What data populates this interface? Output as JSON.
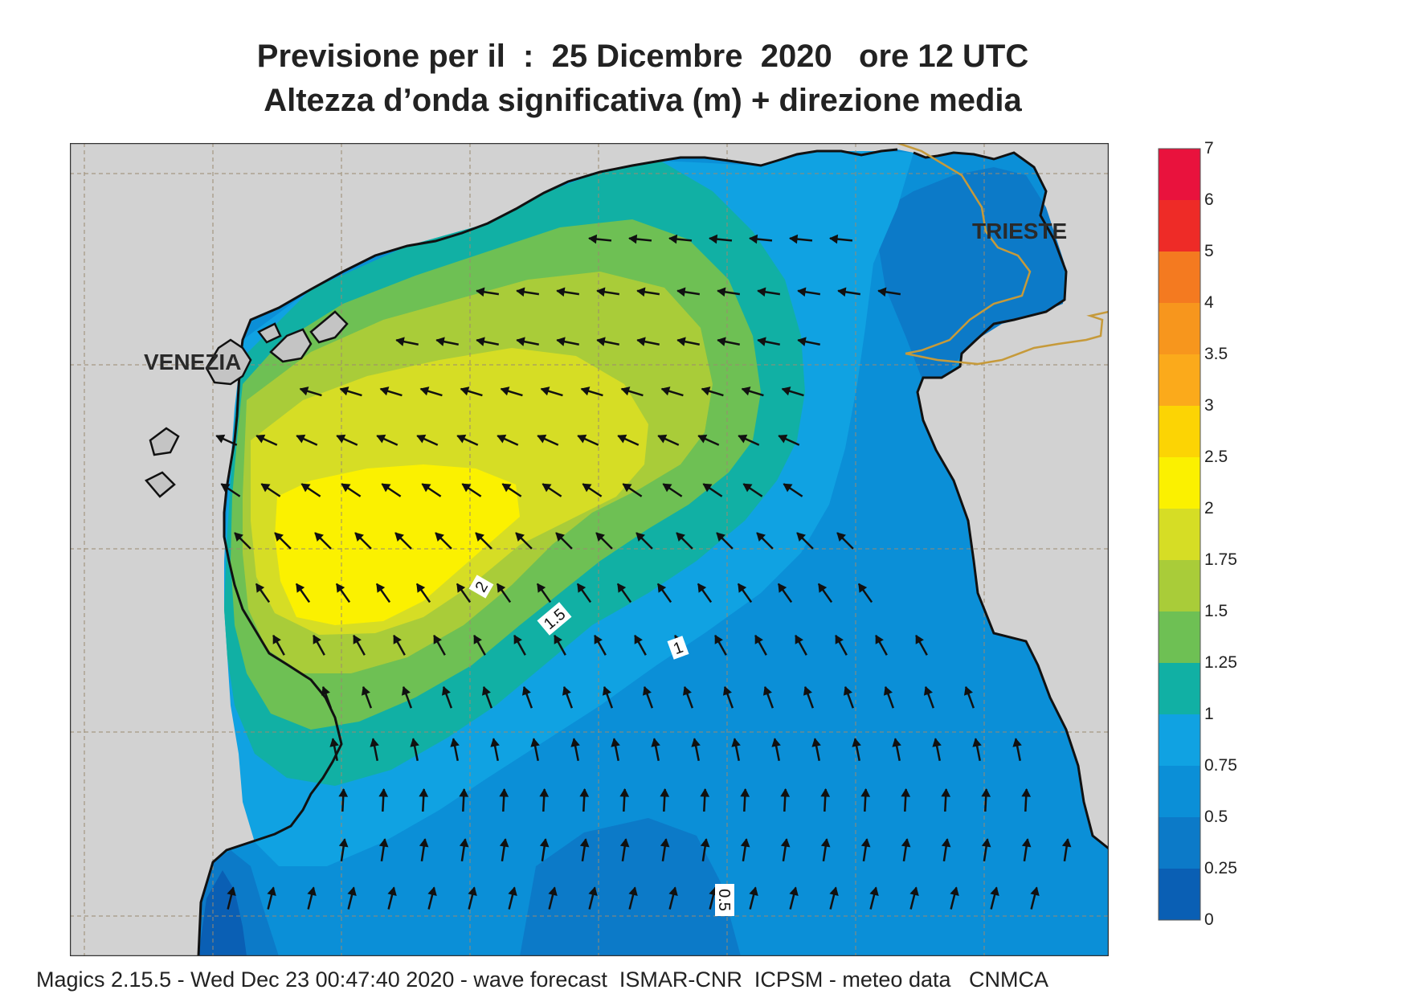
{
  "title": {
    "line1": "Previsione per il  :  25 Dicembre  2020   ore 12 UTC",
    "line2": "Altezza d’onda significativa (m) + direzione media"
  },
  "map": {
    "cities": [
      {
        "name": "VENEZIA"
      },
      {
        "name": "TRIESTE"
      }
    ],
    "contour_labels": [
      "2",
      "1.5",
      "1",
      "0.5"
    ]
  },
  "legend": {
    "levels": [
      {
        "value": "0",
        "color": "#0a5fb4"
      },
      {
        "value": "0.25",
        "color": "#0c7ac8"
      },
      {
        "value": "0.5",
        "color": "#0b8fd7"
      },
      {
        "value": "0.75",
        "color": "#10a2e2"
      },
      {
        "value": "1",
        "color": "#11b0a4"
      },
      {
        "value": "1.25",
        "color": "#6ec054"
      },
      {
        "value": "1.5",
        "color": "#a9cc39"
      },
      {
        "value": "1.75",
        "color": "#d6dd25"
      },
      {
        "value": "2",
        "color": "#fbf100"
      },
      {
        "value": "2.5",
        "color": "#fcd404"
      },
      {
        "value": "3",
        "color": "#fbaa1b"
      },
      {
        "value": "3.5",
        "color": "#f7961d"
      },
      {
        "value": "4",
        "color": "#f47a20"
      },
      {
        "value": "5",
        "color": "#ee2b27"
      },
      {
        "value": "6",
        "color": "#e9123d"
      },
      {
        "value": "7",
        "color": ""
      }
    ]
  },
  "footer": "Magics 2.15.5 - Wed Dec 23 00:47:40 2020 - wave forecast  ISMAR-CNR  ICPSM - meteo data   CNMCA"
}
